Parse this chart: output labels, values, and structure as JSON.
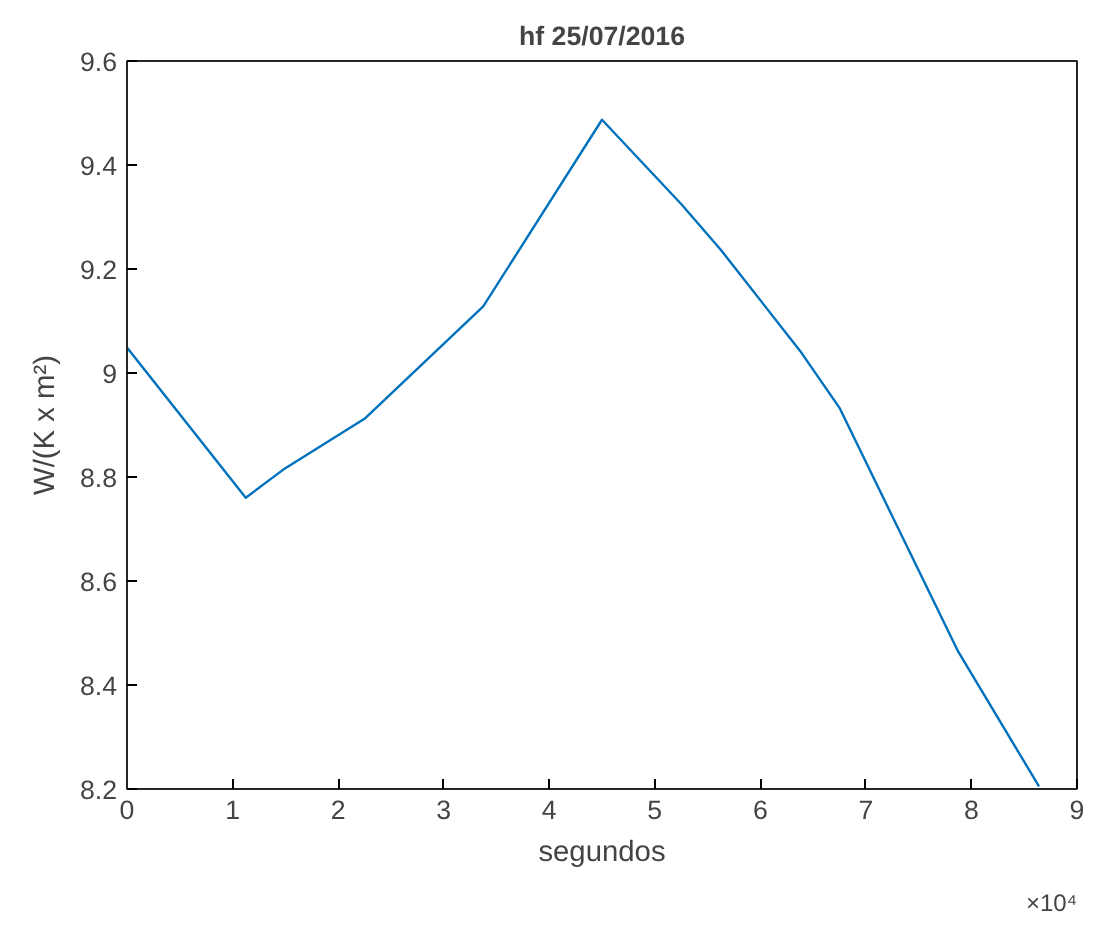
{
  "chart_data": {
    "type": "line",
    "title": "hf 25/07/2016",
    "xlabel": "segundos",
    "ylabel": "W/(K x m²)",
    "x": [
      0,
      1.125,
      1.5,
      2.25,
      3.375,
      4.5,
      5.25,
      5.625,
      6.375,
      6.75,
      7.875,
      8.64
    ],
    "series": [
      {
        "color": "#0072bd",
        "values": [
          9.049,
          8.76,
          8.817,
          8.912,
          9.128,
          9.487,
          9.325,
          9.237,
          9.043,
          8.933,
          8.464,
          8.205
        ]
      }
    ],
    "xlim": [
      0,
      9
    ],
    "xticks": [
      0,
      1,
      2,
      3,
      4,
      5,
      6,
      7,
      8,
      9
    ],
    "ylim": [
      8.2,
      9.6
    ],
    "yticks": [
      8.2,
      8.4,
      8.6,
      8.8,
      9,
      9.2,
      9.4,
      9.6
    ],
    "annotations": [
      "×10⁴"
    ],
    "grid": false,
    "marker": "none",
    "line_style": "solid"
  }
}
